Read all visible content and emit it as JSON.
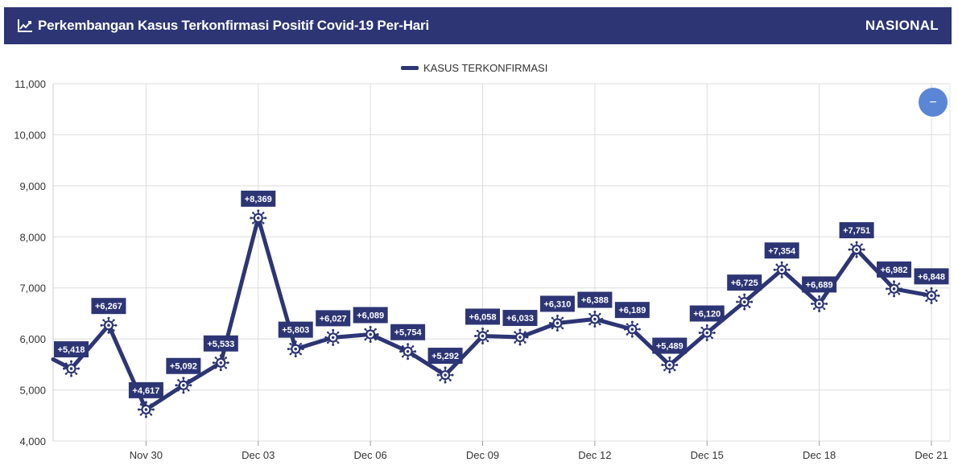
{
  "header": {
    "title": "Perkembangan Kasus Terkonfirmasi Positif Covid-19 Per-Hari",
    "region": "NASIONAL",
    "icon": "line-chart-icon"
  },
  "colors": {
    "primary": "#2d3574",
    "zoom_button": "#5b86d6",
    "grid": "#dddddd"
  },
  "zoom_button": {
    "label": "−",
    "icon": "minus-icon"
  },
  "chart_data": {
    "type": "line",
    "legend": [
      "KASUS TERKONFIRMASI"
    ],
    "legend_position": "top-center",
    "grid": true,
    "ylim": [
      4000,
      11000
    ],
    "yticks": [
      4000,
      5000,
      6000,
      7000,
      8000,
      9000,
      10000,
      11000
    ],
    "ytick_labels": [
      "4,000",
      "5,000",
      "6,000",
      "7,000",
      "8,000",
      "9,000",
      "10,000",
      "11,000"
    ],
    "xtick_labels": [
      "Nov 30",
      "Dec 03",
      "Dec 06",
      "Dec 09",
      "Dec 12",
      "Dec 15",
      "Dec 18",
      "Dec 21"
    ],
    "xtick_indices": [
      2,
      5,
      8,
      11,
      14,
      17,
      20,
      23
    ],
    "x": [
      "Nov 28",
      "Nov 29",
      "Nov 30",
      "Dec 01",
      "Dec 02",
      "Dec 03",
      "Dec 04",
      "Dec 05",
      "Dec 06",
      "Dec 07",
      "Dec 08",
      "Dec 09",
      "Dec 10",
      "Dec 11",
      "Dec 12",
      "Dec 13",
      "Dec 14",
      "Dec 15",
      "Dec 16",
      "Dec 17",
      "Dec 18",
      "Dec 19",
      "Dec 20",
      "Dec 21"
    ],
    "series": [
      {
        "name": "KASUS TERKONFIRMASI",
        "values": [
          5418,
          6267,
          4617,
          5092,
          5533,
          8369,
          5803,
          6027,
          6089,
          5754,
          5292,
          6058,
          6033,
          6310,
          6388,
          6189,
          5489,
          6120,
          6725,
          7354,
          6689,
          7751,
          6982,
          6848
        ],
        "labels": [
          "+5,418",
          "+6,267",
          "+4,617",
          "+5,092",
          "+5,533",
          "+8,369",
          "+5,803",
          "+6,027",
          "+6,089",
          "+5,754",
          "+5,292",
          "+6,058",
          "+6,033",
          "+6,310",
          "+6,388",
          "+6,189",
          "+5,489",
          "+6,120",
          "+6,725",
          "+7,354",
          "+6,689",
          "+7,751",
          "+6,982",
          "+6,848"
        ],
        "leading_value": 5600
      }
    ]
  }
}
